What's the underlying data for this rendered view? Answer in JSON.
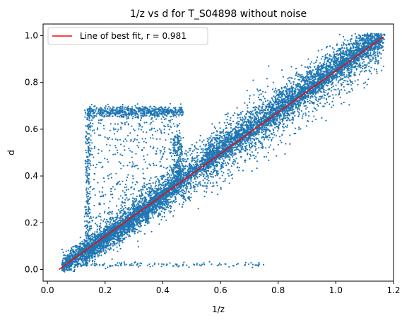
{
  "chart_data": {
    "type": "scatter",
    "title": "1/z vs d for T_S04898 without noise",
    "xlabel": "1/z",
    "ylabel": "d",
    "xlim": [
      -0.015,
      1.2
    ],
    "ylim": [
      -0.05,
      1.05
    ],
    "x_ticks": [
      "0.0",
      "0.2",
      "0.4",
      "0.6",
      "0.8",
      "1.0",
      "1.2"
    ],
    "x_tick_values": [
      0.0,
      0.2,
      0.4,
      0.6,
      0.8,
      1.0,
      1.2
    ],
    "y_ticks": [
      "0.0",
      "0.2",
      "0.4",
      "0.6",
      "0.8",
      "1.0"
    ],
    "y_tick_values": [
      0.0,
      0.2,
      0.4,
      0.6,
      0.8,
      1.0
    ],
    "grid": false,
    "legend_position": "upper-left",
    "series": [
      {
        "name": "Line of best fit, r = 0.981",
        "kind": "line",
        "color": "#ff0000",
        "x": [
          0.04,
          1.165
        ],
        "y": [
          0.0,
          0.995
        ]
      },
      {
        "kind": "scatter",
        "color": "#1f77b4",
        "x_range": [
          0.04,
          1.17
        ],
        "y_range": [
          0.0,
          1.0
        ]
      }
    ]
  }
}
